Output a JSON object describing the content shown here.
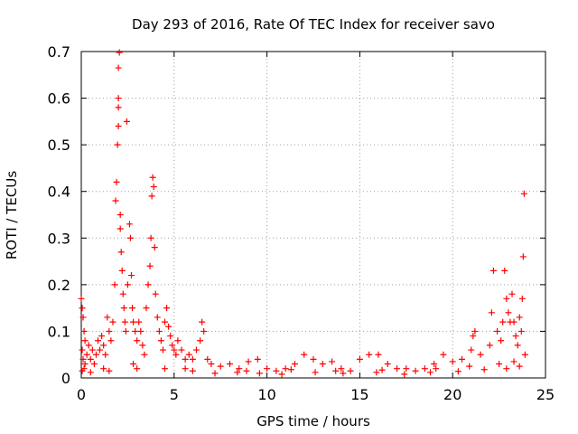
{
  "chart_data": {
    "type": "scatter",
    "title": "Day 293 of 2016, Rate Of TEC Index for receiver savo",
    "xlabel": "GPS time / hours",
    "ylabel": "ROTI / TECUs",
    "xlim": [
      0,
      25
    ],
    "ylim": [
      0,
      0.7
    ],
    "xticks": [
      0,
      5,
      10,
      15,
      20,
      25
    ],
    "yticks": [
      0,
      0.1,
      0.2,
      0.3,
      0.4,
      0.5,
      0.6,
      0.7
    ],
    "xtick_labels": [
      "0",
      "5",
      "10",
      "15",
      "20",
      "25"
    ],
    "ytick_labels": [
      "0",
      "0.1",
      "0.2",
      "0.3",
      "0.4",
      "0.5",
      "0.6",
      "0.7"
    ],
    "grid": true,
    "marker": "+",
    "color": "#ff0000",
    "series": [
      {
        "name": "ROTI",
        "points": [
          [
            0.0,
            0.17
          ],
          [
            0.05,
            0.15
          ],
          [
            0.1,
            0.13
          ],
          [
            0.15,
            0.1
          ],
          [
            0.2,
            0.08
          ],
          [
            0.05,
            0.06
          ],
          [
            0.1,
            0.04
          ],
          [
            0.2,
            0.03
          ],
          [
            0.3,
            0.05
          ],
          [
            0.15,
            0.02
          ],
          [
            0.4,
            0.07
          ],
          [
            0.5,
            0.04
          ],
          [
            0.6,
            0.06
          ],
          [
            0.7,
            0.03
          ],
          [
            0.8,
            0.05
          ],
          [
            0.9,
            0.08
          ],
          [
            1.0,
            0.06
          ],
          [
            1.1,
            0.09
          ],
          [
            1.2,
            0.07
          ],
          [
            1.3,
            0.05
          ],
          [
            1.4,
            0.13
          ],
          [
            1.5,
            0.1
          ],
          [
            1.6,
            0.08
          ],
          [
            1.7,
            0.12
          ],
          [
            1.8,
            0.2
          ],
          [
            1.85,
            0.38
          ],
          [
            1.9,
            0.42
          ],
          [
            1.95,
            0.5
          ],
          [
            2.0,
            0.54
          ],
          [
            2.0,
            0.58
          ],
          [
            2.0,
            0.6
          ],
          [
            2.0,
            0.665
          ],
          [
            2.05,
            0.698
          ],
          [
            2.1,
            0.35
          ],
          [
            2.1,
            0.32
          ],
          [
            2.15,
            0.27
          ],
          [
            2.2,
            0.23
          ],
          [
            2.25,
            0.18
          ],
          [
            2.3,
            0.15
          ],
          [
            2.35,
            0.12
          ],
          [
            2.4,
            0.1
          ],
          [
            2.45,
            0.55
          ],
          [
            2.5,
            0.2
          ],
          [
            2.6,
            0.33
          ],
          [
            2.65,
            0.3
          ],
          [
            2.7,
            0.22
          ],
          [
            2.75,
            0.15
          ],
          [
            2.8,
            0.12
          ],
          [
            2.9,
            0.1
          ],
          [
            3.0,
            0.08
          ],
          [
            3.1,
            0.12
          ],
          [
            3.2,
            0.1
          ],
          [
            3.3,
            0.07
          ],
          [
            3.4,
            0.05
          ],
          [
            3.5,
            0.15
          ],
          [
            3.6,
            0.2
          ],
          [
            3.7,
            0.24
          ],
          [
            3.75,
            0.3
          ],
          [
            3.8,
            0.39
          ],
          [
            3.85,
            0.43
          ],
          [
            3.9,
            0.41
          ],
          [
            3.95,
            0.28
          ],
          [
            4.0,
            0.18
          ],
          [
            4.1,
            0.13
          ],
          [
            4.2,
            0.1
          ],
          [
            4.3,
            0.08
          ],
          [
            4.4,
            0.06
          ],
          [
            4.5,
            0.12
          ],
          [
            4.6,
            0.15
          ],
          [
            4.7,
            0.11
          ],
          [
            4.8,
            0.09
          ],
          [
            4.9,
            0.07
          ],
          [
            5.0,
            0.06
          ],
          [
            5.1,
            0.05
          ],
          [
            5.2,
            0.08
          ],
          [
            5.4,
            0.06
          ],
          [
            5.6,
            0.04
          ],
          [
            5.8,
            0.05
          ],
          [
            6.0,
            0.04
          ],
          [
            6.2,
            0.06
          ],
          [
            6.4,
            0.08
          ],
          [
            6.5,
            0.12
          ],
          [
            6.6,
            0.1
          ],
          [
            6.8,
            0.04
          ],
          [
            7.0,
            0.03
          ],
          [
            7.5,
            0.025
          ],
          [
            8.0,
            0.03
          ],
          [
            8.5,
            0.02
          ],
          [
            9.0,
            0.035
          ],
          [
            9.5,
            0.04
          ],
          [
            10.0,
            0.02
          ],
          [
            10.5,
            0.015
          ],
          [
            11.0,
            0.02
          ],
          [
            11.5,
            0.03
          ],
          [
            12.0,
            0.05
          ],
          [
            12.5,
            0.04
          ],
          [
            13.0,
            0.03
          ],
          [
            13.5,
            0.035
          ],
          [
            14.0,
            0.02
          ],
          [
            14.5,
            0.015
          ],
          [
            15.0,
            0.04
          ],
          [
            15.5,
            0.05
          ],
          [
            16.0,
            0.05
          ],
          [
            16.5,
            0.03
          ],
          [
            17.0,
            0.02
          ],
          [
            17.5,
            0.02
          ],
          [
            18.0,
            0.015
          ],
          [
            18.5,
            0.02
          ],
          [
            19.0,
            0.03
          ],
          [
            19.5,
            0.05
          ],
          [
            20.0,
            0.035
          ],
          [
            20.5,
            0.04
          ],
          [
            21.0,
            0.06
          ],
          [
            21.1,
            0.09
          ],
          [
            21.2,
            0.1
          ],
          [
            21.5,
            0.05
          ],
          [
            22.0,
            0.07
          ],
          [
            22.1,
            0.14
          ],
          [
            22.2,
            0.23
          ],
          [
            22.4,
            0.1
          ],
          [
            22.6,
            0.08
          ],
          [
            22.7,
            0.12
          ],
          [
            22.8,
            0.23
          ],
          [
            22.9,
            0.17
          ],
          [
            23.0,
            0.14
          ],
          [
            23.1,
            0.12
          ],
          [
            23.2,
            0.18
          ],
          [
            23.3,
            0.12
          ],
          [
            23.4,
            0.09
          ],
          [
            23.5,
            0.07
          ],
          [
            23.6,
            0.13
          ],
          [
            23.7,
            0.1
          ],
          [
            23.75,
            0.17
          ],
          [
            23.8,
            0.26
          ],
          [
            23.85,
            0.395
          ],
          [
            23.9,
            0.05
          ],
          [
            0.05,
            0.015
          ],
          [
            0.5,
            0.012
          ],
          [
            1.5,
            0.015
          ],
          [
            3.0,
            0.02
          ],
          [
            4.5,
            0.02
          ],
          [
            6.0,
            0.015
          ],
          [
            7.2,
            0.01
          ],
          [
            8.4,
            0.012
          ],
          [
            9.6,
            0.01
          ],
          [
            10.8,
            0.008
          ],
          [
            12.6,
            0.012
          ],
          [
            14.1,
            0.01
          ],
          [
            15.9,
            0.012
          ],
          [
            17.4,
            0.008
          ],
          [
            18.8,
            0.012
          ],
          [
            20.3,
            0.014
          ],
          [
            21.7,
            0.018
          ],
          [
            22.9,
            0.02
          ],
          [
            23.6,
            0.025
          ],
          [
            1.2,
            0.02
          ],
          [
            2.8,
            0.03
          ],
          [
            5.6,
            0.02
          ],
          [
            8.9,
            0.015
          ],
          [
            11.3,
            0.018
          ],
          [
            13.7,
            0.015
          ],
          [
            16.2,
            0.017
          ],
          [
            19.1,
            0.02
          ],
          [
            20.9,
            0.025
          ],
          [
            22.5,
            0.03
          ],
          [
            23.3,
            0.035
          ]
        ]
      }
    ]
  }
}
